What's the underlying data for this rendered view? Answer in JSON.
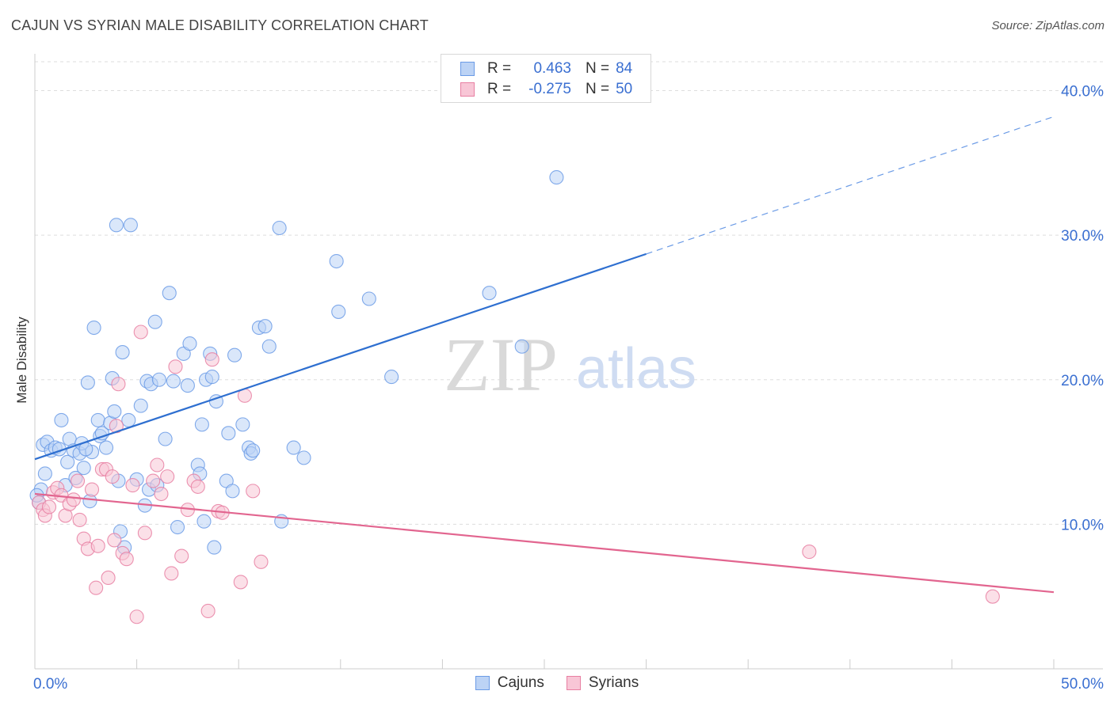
{
  "title": "CAJUN VS SYRIAN MALE DISABILITY CORRELATION CHART",
  "source": "Source: ZipAtlas.com",
  "stats": [
    {
      "r_label": "R =",
      "r_value": "0.463",
      "n_label": "N =",
      "n_value": "84",
      "color": "#6b9be6",
      "fill": "#bcd3f5"
    },
    {
      "r_label": "R =",
      "r_value": "-0.275",
      "n_label": "N =",
      "n_value": "50",
      "color": "#e87fa2",
      "fill": "#f8c6d6"
    }
  ],
  "legend": [
    {
      "label": "Cajuns",
      "color": "#6b9be6",
      "fill": "#bcd3f5"
    },
    {
      "label": "Syrians",
      "color": "#e87fa2",
      "fill": "#f8c6d6"
    }
  ],
  "watermark": {
    "zip": "ZIP",
    "atlas": "atlas"
  },
  "chart_data": {
    "type": "scatter",
    "title": "CAJUN VS SYRIAN MALE DISABILITY CORRELATION CHART",
    "xlabel": "",
    "ylabel": "Male Disability",
    "xlim": [
      0,
      50
    ],
    "ylim": [
      0,
      42
    ],
    "x_tick_labels": [
      "0.0%",
      "50.0%"
    ],
    "y_tick_labels": [
      "10.0%",
      "20.0%",
      "30.0%",
      "40.0%"
    ],
    "y_ticks": [
      10,
      20,
      30,
      40
    ],
    "grid": true,
    "legend_position": "bottom-center",
    "series": [
      {
        "name": "Cajuns",
        "color": "#6b9be6",
        "fill": "#bcd3f5",
        "trend": {
          "x0": 0,
          "y0": 14.5,
          "x1": 30,
          "y1": 28.7,
          "dash_to_x": 50,
          "dash_to_y": 38.2
        },
        "points": [
          [
            0.4,
            15.5
          ],
          [
            0.5,
            13.5
          ],
          [
            0.6,
            15.7
          ],
          [
            0.8,
            15.1
          ],
          [
            1.0,
            15.3
          ],
          [
            1.3,
            17.2
          ],
          [
            1.5,
            12.7
          ],
          [
            1.6,
            14.3
          ],
          [
            1.7,
            15.9
          ],
          [
            1.9,
            15.1
          ],
          [
            2.0,
            13.2
          ],
          [
            2.2,
            14.9
          ],
          [
            2.3,
            15.6
          ],
          [
            2.4,
            13.9
          ],
          [
            2.6,
            19.8
          ],
          [
            2.7,
            11.6
          ],
          [
            2.8,
            15.0
          ],
          [
            2.9,
            23.6
          ],
          [
            3.1,
            17.2
          ],
          [
            3.2,
            16.1
          ],
          [
            3.3,
            16.3
          ],
          [
            3.5,
            15.3
          ],
          [
            3.7,
            17.0
          ],
          [
            3.8,
            20.1
          ],
          [
            3.9,
            17.8
          ],
          [
            4.0,
            30.7
          ],
          [
            4.1,
            13.0
          ],
          [
            4.2,
            9.5
          ],
          [
            4.3,
            21.9
          ],
          [
            4.4,
            8.4
          ],
          [
            4.6,
            17.2
          ],
          [
            4.7,
            30.7
          ],
          [
            5.0,
            13.1
          ],
          [
            5.2,
            18.2
          ],
          [
            5.4,
            11.3
          ],
          [
            5.5,
            19.9
          ],
          [
            5.6,
            12.4
          ],
          [
            5.7,
            19.7
          ],
          [
            5.9,
            24.0
          ],
          [
            6.1,
            20.0
          ],
          [
            6.4,
            15.9
          ],
          [
            6.6,
            26.0
          ],
          [
            6.8,
            19.9
          ],
          [
            7.0,
            9.8
          ],
          [
            7.3,
            21.8
          ],
          [
            7.5,
            19.6
          ],
          [
            7.6,
            22.5
          ],
          [
            8.0,
            14.1
          ],
          [
            8.1,
            13.5
          ],
          [
            8.2,
            16.9
          ],
          [
            8.3,
            10.2
          ],
          [
            8.4,
            20.0
          ],
          [
            8.6,
            21.8
          ],
          [
            8.7,
            20.2
          ],
          [
            8.8,
            8.4
          ],
          [
            8.9,
            18.5
          ],
          [
            9.4,
            13.0
          ],
          [
            9.5,
            16.3
          ],
          [
            9.7,
            12.3
          ],
          [
            9.8,
            21.7
          ],
          [
            10.2,
            16.9
          ],
          [
            10.5,
            15.3
          ],
          [
            10.6,
            14.9
          ],
          [
            10.7,
            15.1
          ],
          [
            11.0,
            23.6
          ],
          [
            11.3,
            23.7
          ],
          [
            11.5,
            22.3
          ],
          [
            12.0,
            30.5
          ],
          [
            12.1,
            10.2
          ],
          [
            12.7,
            15.3
          ],
          [
            13.2,
            14.6
          ],
          [
            14.8,
            28.2
          ],
          [
            14.9,
            24.7
          ],
          [
            16.4,
            25.6
          ],
          [
            17.5,
            20.2
          ],
          [
            22.3,
            26.0
          ],
          [
            23.9,
            22.3
          ],
          [
            25.6,
            34.0
          ],
          [
            0.2,
            11.5
          ],
          [
            0.3,
            12.4
          ],
          [
            0.1,
            12.0
          ],
          [
            1.2,
            15.2
          ],
          [
            2.5,
            15.2
          ],
          [
            6.0,
            12.7
          ]
        ]
      },
      {
        "name": "Syrians",
        "color": "#e87fa2",
        "fill": "#f8c6d6",
        "trend": {
          "x0": 0,
          "y0": 12.1,
          "x1": 50,
          "y1": 5.3
        },
        "points": [
          [
            0.2,
            11.5
          ],
          [
            0.4,
            11.0
          ],
          [
            0.5,
            10.6
          ],
          [
            0.7,
            11.2
          ],
          [
            0.9,
            12.2
          ],
          [
            1.1,
            12.5
          ],
          [
            1.3,
            12.0
          ],
          [
            1.5,
            10.6
          ],
          [
            1.7,
            11.4
          ],
          [
            1.9,
            11.7
          ],
          [
            2.1,
            13.0
          ],
          [
            2.2,
            10.3
          ],
          [
            2.4,
            9.0
          ],
          [
            2.6,
            8.3
          ],
          [
            2.8,
            12.4
          ],
          [
            3.0,
            5.6
          ],
          [
            3.1,
            8.5
          ],
          [
            3.3,
            13.8
          ],
          [
            3.5,
            13.8
          ],
          [
            3.6,
            6.3
          ],
          [
            3.8,
            13.3
          ],
          [
            3.9,
            8.9
          ],
          [
            4.0,
            16.8
          ],
          [
            4.1,
            19.7
          ],
          [
            4.3,
            8.0
          ],
          [
            4.5,
            7.6
          ],
          [
            4.8,
            12.7
          ],
          [
            5.0,
            3.6
          ],
          [
            5.2,
            23.3
          ],
          [
            5.4,
            9.4
          ],
          [
            5.8,
            13.0
          ],
          [
            6.0,
            14.1
          ],
          [
            6.2,
            12.1
          ],
          [
            6.5,
            13.3
          ],
          [
            6.7,
            6.6
          ],
          [
            6.9,
            20.9
          ],
          [
            7.2,
            7.8
          ],
          [
            7.5,
            11.0
          ],
          [
            7.8,
            13.0
          ],
          [
            8.0,
            12.6
          ],
          [
            8.5,
            4.0
          ],
          [
            8.7,
            21.4
          ],
          [
            9.0,
            10.9
          ],
          [
            9.2,
            10.8
          ],
          [
            10.1,
            6.0
          ],
          [
            10.3,
            18.9
          ],
          [
            10.7,
            12.3
          ],
          [
            11.1,
            7.4
          ],
          [
            38.0,
            8.1
          ],
          [
            47.0,
            5.0
          ]
        ]
      }
    ]
  }
}
